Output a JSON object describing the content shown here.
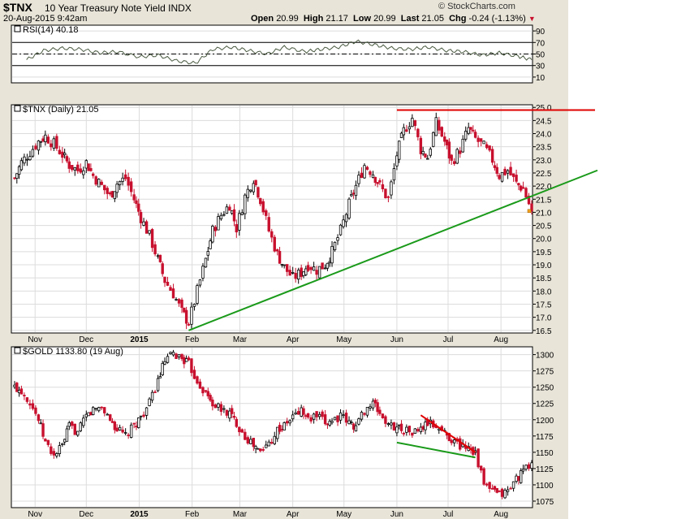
{
  "header": {
    "symbol": "$TNX",
    "name": "10 Year Treasury Note Yield",
    "exchange": "INDX",
    "timestamp": "20-Aug-2015 9:42am",
    "open_label": "Open",
    "open": "20.99",
    "high_label": "High",
    "high": "21.17",
    "low_label": "Low",
    "low": "20.99",
    "last_label": "Last",
    "last": "21.05",
    "chg_label": "Chg",
    "chg": "-0.24 (-1.13%)",
    "brand": "© StockCharts.com"
  },
  "colors": {
    "up": "#000000",
    "down": "#c8102e",
    "rsi": "#4a5a40",
    "resistance": "#e00000",
    "support": "#1a9a1a",
    "frame": "#e8e4d8"
  },
  "chart_data": [
    {
      "type": "line",
      "title": "RSI(14) 40.18",
      "ylim": [
        0,
        100
      ],
      "yticks": [
        10,
        30,
        50,
        70,
        90
      ],
      "levels": [
        70,
        30
      ],
      "midline": 50,
      "x": [
        "Oct 27",
        "Nov 6",
        "Nov 17",
        "Nov 28",
        "Dec 9",
        "Dec 19",
        "Jan 1",
        "Jan 12",
        "Jan 23",
        "Feb 3",
        "Feb 13",
        "Feb 24",
        "Mar 6",
        "Mar 17",
        "Mar 27",
        "Apr 8",
        "Apr 17",
        "Apr 28",
        "May 8",
        "May 19",
        "May 29",
        "Jun 9",
        "Jun 19",
        "Jun 30",
        "Jul 10",
        "Jul 21",
        "Jul 31",
        "Aug 11",
        "Aug 19"
      ],
      "series": [
        {
          "values": [
            40,
            56,
            60,
            58,
            52,
            54,
            45,
            48,
            38,
            34,
            58,
            62,
            56,
            50,
            62,
            54,
            58,
            62,
            72,
            66,
            60,
            58,
            62,
            56,
            54,
            48,
            52,
            46,
            40
          ]
        }
      ]
    },
    {
      "type": "candlestick",
      "title": "$TNX (Daily) 21.05",
      "ylim": [
        16.4,
        25.1
      ],
      "yticks": [
        16.5,
        17.0,
        17.5,
        18.0,
        18.5,
        19.0,
        19.5,
        20.0,
        20.5,
        21.0,
        21.5,
        22.0,
        22.5,
        23.0,
        23.5,
        24.0,
        24.5,
        25.0
      ],
      "x_labels": [
        "Nov",
        "Dec",
        "2015",
        "Feb",
        "Mar",
        "Apr",
        "May",
        "Jun",
        "Jul",
        "Aug"
      ],
      "x_label_dates": [
        "Nov 1",
        "Dec 1",
        "Jan 1",
        "Feb 1",
        "Mar 1",
        "Apr 1",
        "May 1",
        "Jun 1",
        "Jul 1",
        "Aug 1"
      ],
      "x": [
        "Oct 20",
        "Oct 24",
        "Oct 29",
        "Nov 3",
        "Nov 7",
        "Nov 12",
        "Nov 17",
        "Nov 21",
        "Nov 26",
        "Dec 1",
        "Dec 5",
        "Dec 10",
        "Dec 15",
        "Dec 19",
        "Dec 24",
        "Dec 29",
        "Jan 2",
        "Jan 7",
        "Jan 12",
        "Jan 16",
        "Jan 21",
        "Jan 26",
        "Jan 30",
        "Feb 4",
        "Feb 9",
        "Feb 13",
        "Feb 18",
        "Feb 23",
        "Feb 27",
        "Mar 4",
        "Mar 9",
        "Mar 13",
        "Mar 18",
        "Mar 23",
        "Mar 27",
        "Apr 1",
        "Apr 6",
        "Apr 10",
        "Apr 15",
        "Apr 20",
        "Apr 24",
        "Apr 29",
        "May 4",
        "May 8",
        "May 13",
        "May 18",
        "May 22",
        "May 27",
        "Jun 1",
        "Jun 5",
        "Jun 10",
        "Jun 15",
        "Jun 19",
        "Jun 24",
        "Jun 29",
        "Jul 3",
        "Jul 8",
        "Jul 13",
        "Jul 17",
        "Jul 22",
        "Jul 27",
        "Jul 31",
        "Aug 5",
        "Aug 10",
        "Aug 14",
        "Aug 19"
      ],
      "close": [
        22.3,
        22.9,
        23.3,
        23.7,
        23.9,
        23.6,
        23.2,
        22.8,
        22.6,
        22.9,
        22.4,
        22.0,
        21.6,
        22.1,
        22.3,
        21.5,
        20.8,
        20.1,
        19.2,
        18.4,
        17.9,
        17.2,
        16.8,
        18.0,
        19.2,
        20.3,
        20.9,
        21.3,
        20.4,
        21.6,
        22.3,
        21.5,
        20.3,
        19.4,
        18.9,
        18.5,
        18.7,
        19.0,
        18.8,
        19.0,
        19.5,
        20.3,
        21.3,
        22.0,
        22.8,
        22.5,
        22.0,
        21.5,
        23.2,
        24.1,
        24.6,
        23.4,
        23.1,
        24.4,
        23.7,
        22.9,
        23.4,
        24.2,
        23.8,
        23.5,
        23.0,
        22.4,
        22.6,
        22.1,
        21.9,
        21.05
      ]
    },
    {
      "type": "candlestick",
      "title": "$GOLD 1133.80 (19 Aug)",
      "ylim": [
        1065,
        1312
      ],
      "yticks": [
        1075,
        1100,
        1125,
        1150,
        1175,
        1200,
        1225,
        1250,
        1275,
        1300
      ],
      "x_labels": [
        "Nov",
        "Dec",
        "2015",
        "Feb",
        "Mar",
        "Apr",
        "May",
        "Jun",
        "Jul",
        "Aug"
      ],
      "x_label_dates": [
        "Nov 1",
        "Dec 1",
        "Jan 1",
        "Feb 1",
        "Mar 1",
        "Apr 1",
        "May 1",
        "Jun 1",
        "Jul 1",
        "Aug 1"
      ],
      "x": [
        "Oct 20",
        "Oct 24",
        "Oct 29",
        "Nov 3",
        "Nov 7",
        "Nov 12",
        "Nov 17",
        "Nov 21",
        "Nov 26",
        "Dec 1",
        "Dec 5",
        "Dec 10",
        "Dec 15",
        "Dec 19",
        "Dec 24",
        "Dec 29",
        "Jan 2",
        "Jan 7",
        "Jan 12",
        "Jan 16",
        "Jan 21",
        "Jan 26",
        "Jan 30",
        "Feb 4",
        "Feb 9",
        "Feb 13",
        "Feb 18",
        "Feb 23",
        "Feb 27",
        "Mar 4",
        "Mar 9",
        "Mar 13",
        "Mar 18",
        "Mar 23",
        "Mar 27",
        "Apr 1",
        "Apr 6",
        "Apr 10",
        "Apr 15",
        "Apr 20",
        "Apr 24",
        "Apr 29",
        "May 4",
        "May 8",
        "May 13",
        "May 18",
        "May 22",
        "May 27",
        "Jun 1",
        "Jun 5",
        "Jun 10",
        "Jun 15",
        "Jun 19",
        "Jun 24",
        "Jun 29",
        "Jul 3",
        "Jul 8",
        "Jul 13",
        "Jul 17",
        "Jul 22",
        "Jul 27",
        "Jul 31",
        "Aug 5",
        "Aug 10",
        "Aug 14",
        "Aug 19"
      ],
      "close": [
        1250,
        1245,
        1228,
        1200,
        1165,
        1145,
        1160,
        1190,
        1180,
        1205,
        1215,
        1220,
        1200,
        1185,
        1175,
        1190,
        1205,
        1225,
        1260,
        1290,
        1300,
        1295,
        1285,
        1260,
        1240,
        1225,
        1215,
        1210,
        1195,
        1175,
        1160,
        1150,
        1165,
        1185,
        1190,
        1205,
        1215,
        1200,
        1205,
        1195,
        1200,
        1205,
        1195,
        1190,
        1215,
        1225,
        1210,
        1190,
        1190,
        1185,
        1180,
        1185,
        1195,
        1190,
        1180,
        1170,
        1160,
        1160,
        1150,
        1100,
        1090,
        1085,
        1090,
        1110,
        1120,
        1133.8
      ]
    }
  ],
  "trendlines": {
    "tnx_resistance": {
      "from": [
        "Jun 1",
        24.9
      ],
      "to": [
        "beyond",
        24.9
      ]
    },
    "tnx_support": {
      "from": [
        "Jan 30",
        16.5
      ],
      "to": [
        "beyond",
        22.6
      ]
    },
    "gold_resistance": {
      "from": [
        "Jun 15",
        1207
      ],
      "to": [
        "Jul 17",
        1150
      ]
    },
    "gold_support": {
      "from": [
        "Jun 1",
        1165
      ],
      "to": [
        "Jul 17",
        1142
      ]
    }
  }
}
